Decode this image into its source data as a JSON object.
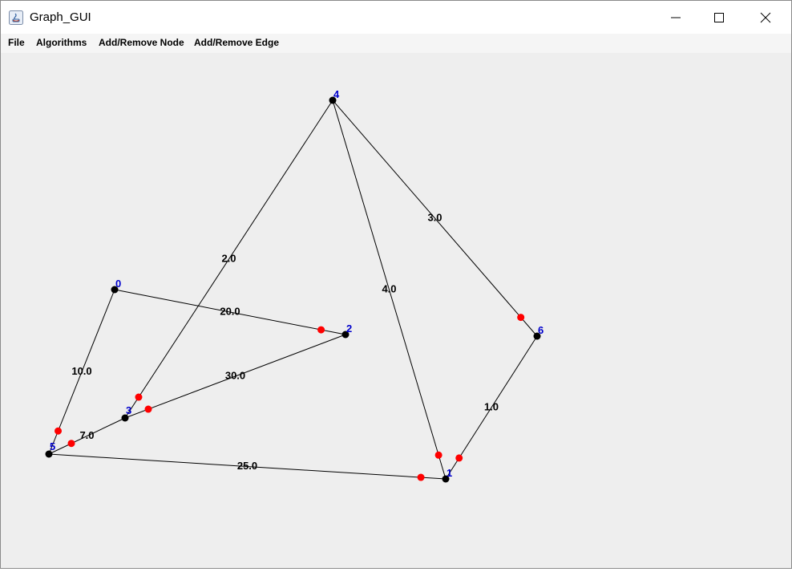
{
  "window": {
    "title": "Graph_GUI"
  },
  "menu": {
    "items": [
      "File",
      "Algorithms",
      "Add/Remove Node",
      "Add/Remove Edge"
    ]
  },
  "colors": {
    "edge": "#000000",
    "node": "#000000",
    "node_label": "#0000cc",
    "arrow_head": "#ff0000",
    "weight_label": "#000000"
  },
  "graph": {
    "nodes": [
      {
        "id": "0",
        "label": "0"
      },
      {
        "id": "1",
        "label": "1"
      },
      {
        "id": "2",
        "label": "2"
      },
      {
        "id": "3",
        "label": "3"
      },
      {
        "id": "4",
        "label": "4"
      },
      {
        "id": "5",
        "label": "5"
      },
      {
        "id": "6",
        "label": "6"
      }
    ],
    "edges": [
      {
        "from": "0",
        "to": "2",
        "weight": "20.0"
      },
      {
        "from": "0",
        "to": "5",
        "weight": "10.0"
      },
      {
        "from": "2",
        "to": "3",
        "weight": "30.0"
      },
      {
        "from": "4",
        "to": "3",
        "weight": "2.0"
      },
      {
        "from": "4",
        "to": "1",
        "weight": "4.0"
      },
      {
        "from": "4",
        "to": "6",
        "weight": "3.0"
      },
      {
        "from": "6",
        "to": "1",
        "weight": "1.0"
      },
      {
        "from": "5",
        "to": "1",
        "weight": "25.0"
      },
      {
        "from": "3",
        "to": "5",
        "weight": "7.0"
      }
    ]
  }
}
